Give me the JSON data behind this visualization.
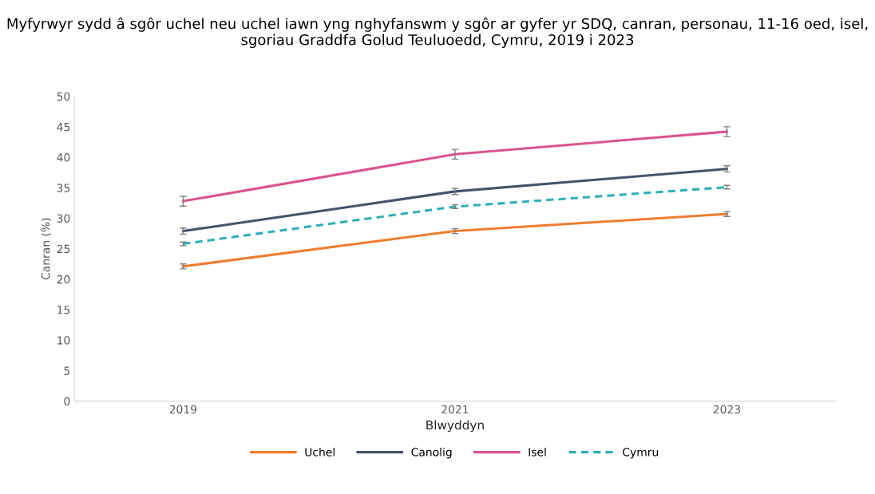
{
  "chart_data": {
    "type": "line",
    "title": "Myfyrwyr sydd â sgôr uchel neu uchel iawn yng nghyfanswm y sgôr ar gyfer yr SDQ, canran, personau, 11-16 oed, isel, sgoriau Graddfa Golud Teuluoedd, Cymru, 2019 i 2023",
    "xlabel": "Blwyddyn",
    "ylabel": "Canran (%)",
    "categories": [
      "2019",
      "2021",
      "2023"
    ],
    "ylim": [
      0,
      50
    ],
    "yticks": [
      0,
      5,
      10,
      15,
      20,
      25,
      30,
      35,
      40,
      45,
      50
    ],
    "grid": false,
    "legend": "bottom",
    "marker": "none",
    "series": [
      {
        "name": "Uchel",
        "color": "#ed7d31",
        "values": [
          22.1,
          27.9,
          30.7
        ],
        "errors": [
          0.4,
          0.4,
          0.4
        ],
        "line_style": "solid"
      },
      {
        "name": "Canolig",
        "color": "#44546a",
        "values": [
          27.9,
          34.4,
          38.1
        ],
        "errors": [
          0.5,
          0.5,
          0.5
        ],
        "line_style": "solid"
      },
      {
        "name": "Isel",
        "color": "#d9558f",
        "values": [
          32.8,
          40.5,
          44.2
        ],
        "errors": [
          0.8,
          0.8,
          0.8
        ],
        "line_style": "solid"
      },
      {
        "name": "Cymru",
        "color": "#2eb0b8",
        "values": [
          25.8,
          31.9,
          35.1
        ],
        "errors": [
          0.3,
          0.3,
          0.3
        ],
        "line_style": "dashed"
      }
    ]
  }
}
